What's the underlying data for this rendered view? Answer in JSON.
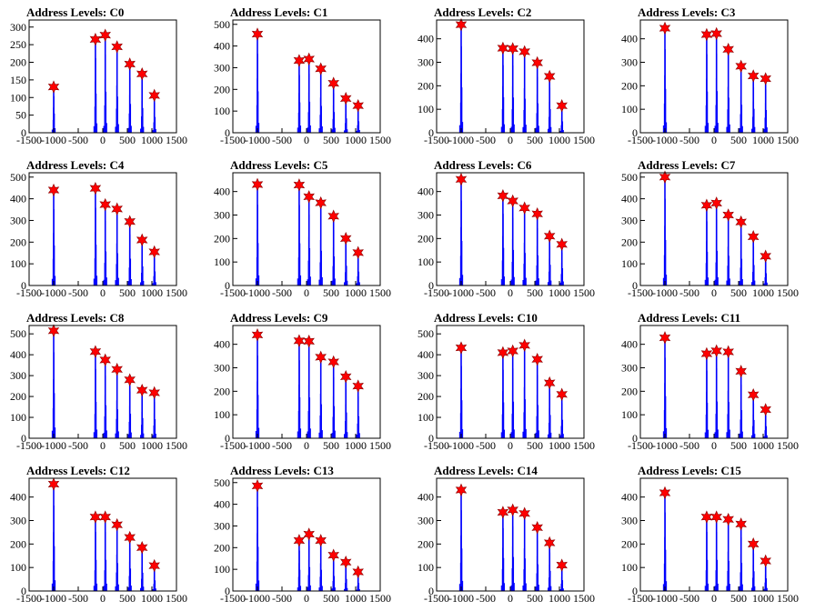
{
  "figure": {
    "background": "#ffffff",
    "bar_color": "#0000ff",
    "marker_color": "#ff0000"
  },
  "chart_data": [
    {
      "type": "bar",
      "title": "Address Levels: C0",
      "xlim": [
        -1500,
        1500
      ],
      "ylim": [
        0,
        320
      ],
      "xticks": [
        -1500,
        -1000,
        -500,
        0,
        500,
        1000,
        1500
      ],
      "xtick_labels": [
        "-1500",
        "-1000",
        "-500",
        "0",
        "500",
        "1000",
        "1500"
      ],
      "yticks": [
        0,
        50,
        100,
        150,
        200,
        250,
        300
      ],
      "peaks": [
        {
          "x": -1000,
          "y": 130
        },
        {
          "x": -150,
          "y": 265
        },
        {
          "x": 50,
          "y": 277
        },
        {
          "x": 290,
          "y": 244
        },
        {
          "x": 550,
          "y": 195
        },
        {
          "x": 800,
          "y": 167
        },
        {
          "x": 1050,
          "y": 106
        }
      ]
    },
    {
      "type": "bar",
      "title": "Address Levels: C1",
      "xlim": [
        -1500,
        1500
      ],
      "ylim": [
        0,
        520
      ],
      "xticks": [
        -1500,
        -1000,
        -500,
        0,
        500,
        1000,
        1500
      ],
      "xtick_labels": [
        "-1500",
        "-1000",
        "-500",
        "0",
        "500",
        "1000",
        "1500"
      ],
      "yticks": [
        0,
        100,
        200,
        300,
        400,
        500
      ],
      "peaks": [
        {
          "x": -1000,
          "y": 455
        },
        {
          "x": -150,
          "y": 333
        },
        {
          "x": 50,
          "y": 340
        },
        {
          "x": 290,
          "y": 295
        },
        {
          "x": 550,
          "y": 228
        },
        {
          "x": 800,
          "y": 158
        },
        {
          "x": 1050,
          "y": 125
        }
      ]
    },
    {
      "type": "bar",
      "title": "Address Levels: C2",
      "xlim": [
        -1500,
        1500
      ],
      "ylim": [
        0,
        480
      ],
      "xticks": [
        -1500,
        -1000,
        -500,
        0,
        500,
        1000,
        1500
      ],
      "xtick_labels": [
        "-1500",
        "-1000",
        "-500",
        "0",
        "500",
        "1000",
        "1500"
      ],
      "yticks": [
        0,
        100,
        200,
        300,
        400
      ],
      "peaks": [
        {
          "x": -1000,
          "y": 460
        },
        {
          "x": -150,
          "y": 360
        },
        {
          "x": 50,
          "y": 358
        },
        {
          "x": 290,
          "y": 345
        },
        {
          "x": 550,
          "y": 298
        },
        {
          "x": 800,
          "y": 240
        },
        {
          "x": 1050,
          "y": 115
        }
      ]
    },
    {
      "type": "bar",
      "title": "Address Levels: C3",
      "xlim": [
        -1500,
        1500
      ],
      "ylim": [
        0,
        480
      ],
      "xticks": [
        -1500,
        -1000,
        -500,
        0,
        500,
        1000,
        1500
      ],
      "xtick_labels": [
        "-1500",
        "-1000",
        "-500",
        "0",
        "500",
        "1000",
        "1500"
      ],
      "yticks": [
        0,
        100,
        200,
        300,
        400
      ],
      "peaks": [
        {
          "x": -1000,
          "y": 445
        },
        {
          "x": -150,
          "y": 418
        },
        {
          "x": 50,
          "y": 422
        },
        {
          "x": 290,
          "y": 355
        },
        {
          "x": 550,
          "y": 283
        },
        {
          "x": 800,
          "y": 242
        },
        {
          "x": 1050,
          "y": 230
        }
      ]
    },
    {
      "type": "bar",
      "title": "Address Levels: C4",
      "xlim": [
        -1500,
        1500
      ],
      "ylim": [
        0,
        520
      ],
      "xticks": [
        -1500,
        -1000,
        -500,
        0,
        500,
        1000,
        1500
      ],
      "xtick_labels": [
        "-1500",
        "-1000",
        "-500",
        "0",
        "500",
        "1000",
        "1500"
      ],
      "yticks": [
        0,
        100,
        200,
        300,
        400,
        500
      ],
      "peaks": [
        {
          "x": -1000,
          "y": 440
        },
        {
          "x": -150,
          "y": 448
        },
        {
          "x": 50,
          "y": 373
        },
        {
          "x": 290,
          "y": 353
        },
        {
          "x": 550,
          "y": 295
        },
        {
          "x": 800,
          "y": 210
        },
        {
          "x": 1050,
          "y": 155
        }
      ]
    },
    {
      "type": "bar",
      "title": "Address Levels: C5",
      "xlim": [
        -1500,
        1500
      ],
      "ylim": [
        0,
        480
      ],
      "xticks": [
        -1500,
        -1000,
        -500,
        0,
        500,
        1000,
        1500
      ],
      "xtick_labels": [
        "-1500",
        "-1000",
        "-500",
        "0",
        "500",
        "1000",
        "1500"
      ],
      "yticks": [
        0,
        100,
        200,
        300,
        400
      ],
      "peaks": [
        {
          "x": -1000,
          "y": 430
        },
        {
          "x": -150,
          "y": 428
        },
        {
          "x": 50,
          "y": 378
        },
        {
          "x": 290,
          "y": 352
        },
        {
          "x": 550,
          "y": 295
        },
        {
          "x": 800,
          "y": 200
        },
        {
          "x": 1050,
          "y": 140
        }
      ]
    },
    {
      "type": "bar",
      "title": "Address Levels: C6",
      "xlim": [
        -1500,
        1500
      ],
      "ylim": [
        0,
        480
      ],
      "xticks": [
        -1500,
        -1000,
        -500,
        0,
        500,
        1000,
        1500
      ],
      "xtick_labels": [
        "-1500",
        "-1000",
        "-500",
        "0",
        "500",
        "1000",
        "1500"
      ],
      "yticks": [
        0,
        100,
        200,
        300,
        400
      ],
      "peaks": [
        {
          "x": -1000,
          "y": 452
        },
        {
          "x": -150,
          "y": 382
        },
        {
          "x": 50,
          "y": 360
        },
        {
          "x": 290,
          "y": 330
        },
        {
          "x": 550,
          "y": 305
        },
        {
          "x": 800,
          "y": 210
        },
        {
          "x": 1050,
          "y": 175
        }
      ]
    },
    {
      "type": "bar",
      "title": "Address Levels: C7",
      "xlim": [
        -1500,
        1500
      ],
      "ylim": [
        0,
        520
      ],
      "xticks": [
        -1500,
        -1000,
        -500,
        0,
        500,
        1000,
        1500
      ],
      "xtick_labels": [
        "-1500",
        "-1000",
        "-500",
        "0",
        "500",
        "1000",
        "1500"
      ],
      "yticks": [
        0,
        100,
        200,
        300,
        400,
        500
      ],
      "peaks": [
        {
          "x": -1000,
          "y": 500
        },
        {
          "x": -150,
          "y": 370
        },
        {
          "x": 50,
          "y": 380
        },
        {
          "x": 290,
          "y": 325
        },
        {
          "x": 550,
          "y": 293
        },
        {
          "x": 800,
          "y": 225
        },
        {
          "x": 1050,
          "y": 135
        }
      ]
    },
    {
      "type": "bar",
      "title": "Address Levels: C8",
      "xlim": [
        -1500,
        1500
      ],
      "ylim": [
        0,
        540
      ],
      "xticks": [
        -1500,
        -1000,
        -500,
        0,
        500,
        1000,
        1500
      ],
      "xtick_labels": [
        "-1500",
        "-1000",
        "-500",
        "0",
        "500",
        "1000",
        "1500"
      ],
      "yticks": [
        0,
        100,
        200,
        300,
        400,
        500
      ],
      "peaks": [
        {
          "x": -1000,
          "y": 515
        },
        {
          "x": -150,
          "y": 415
        },
        {
          "x": 50,
          "y": 375
        },
        {
          "x": 290,
          "y": 330
        },
        {
          "x": 550,
          "y": 280
        },
        {
          "x": 800,
          "y": 230
        },
        {
          "x": 1050,
          "y": 218
        }
      ]
    },
    {
      "type": "bar",
      "title": "Address Levels: C9",
      "xlim": [
        -1500,
        1500
      ],
      "ylim": [
        0,
        480
      ],
      "xticks": [
        -1500,
        -1000,
        -500,
        0,
        500,
        1000,
        1500
      ],
      "xtick_labels": [
        "-1500",
        "-1000",
        "-500",
        "0",
        "500",
        "1000",
        "1500"
      ],
      "yticks": [
        0,
        100,
        200,
        300,
        400
      ],
      "peaks": [
        {
          "x": -1000,
          "y": 440
        },
        {
          "x": -150,
          "y": 415
        },
        {
          "x": 50,
          "y": 413
        },
        {
          "x": 290,
          "y": 345
        },
        {
          "x": 550,
          "y": 325
        },
        {
          "x": 800,
          "y": 262
        },
        {
          "x": 1050,
          "y": 222
        }
      ]
    },
    {
      "type": "bar",
      "title": "Address Levels: C10",
      "xlim": [
        -1500,
        1500
      ],
      "ylim": [
        0,
        540
      ],
      "xticks": [
        -1500,
        -1000,
        -500,
        0,
        500,
        1000,
        1500
      ],
      "xtick_labels": [
        "-1500",
        "-1000",
        "-500",
        "0",
        "500",
        "1000",
        "1500"
      ],
      "yticks": [
        0,
        100,
        200,
        300,
        400,
        500
      ],
      "peaks": [
        {
          "x": -1000,
          "y": 433
        },
        {
          "x": -150,
          "y": 410
        },
        {
          "x": 50,
          "y": 418
        },
        {
          "x": 290,
          "y": 445
        },
        {
          "x": 550,
          "y": 378
        },
        {
          "x": 800,
          "y": 265
        },
        {
          "x": 1050,
          "y": 210
        }
      ]
    },
    {
      "type": "bar",
      "title": "Address Levels: C11",
      "xlim": [
        -1500,
        1500
      ],
      "ylim": [
        0,
        480
      ],
      "xticks": [
        -1500,
        -1000,
        -500,
        0,
        500,
        1000,
        1500
      ],
      "xtick_labels": [
        "-1500",
        "-1000",
        "-500",
        "0",
        "500",
        "1000",
        "1500"
      ],
      "yticks": [
        0,
        100,
        200,
        300,
        400
      ],
      "peaks": [
        {
          "x": -1000,
          "y": 428
        },
        {
          "x": -150,
          "y": 360
        },
        {
          "x": 50,
          "y": 372
        },
        {
          "x": 290,
          "y": 368
        },
        {
          "x": 550,
          "y": 285
        },
        {
          "x": 800,
          "y": 185
        },
        {
          "x": 1050,
          "y": 122
        }
      ]
    },
    {
      "type": "bar",
      "title": "Address Levels: C12",
      "xlim": [
        -1500,
        1500
      ],
      "ylim": [
        0,
        480
      ],
      "xticks": [
        -1500,
        -1000,
        -500,
        0,
        500,
        1000,
        1500
      ],
      "xtick_labels": [
        "-1500",
        "-1000",
        "-500",
        "0",
        "500",
        "1000",
        "1500"
      ],
      "yticks": [
        0,
        100,
        200,
        300,
        400
      ],
      "peaks": [
        {
          "x": -1000,
          "y": 455
        },
        {
          "x": -150,
          "y": 315
        },
        {
          "x": 50,
          "y": 315
        },
        {
          "x": 290,
          "y": 282
        },
        {
          "x": 550,
          "y": 228
        },
        {
          "x": 800,
          "y": 185
        },
        {
          "x": 1050,
          "y": 108
        }
      ]
    },
    {
      "type": "bar",
      "title": "Address Levels: C13",
      "xlim": [
        -1500,
        1500
      ],
      "ylim": [
        0,
        520
      ],
      "xticks": [
        -1500,
        -1000,
        -500,
        0,
        500,
        1000,
        1500
      ],
      "xtick_labels": [
        "-1500",
        "-1000",
        "-500",
        "0",
        "500",
        "1000",
        "1500"
      ],
      "yticks": [
        0,
        100,
        200,
        300,
        400,
        500
      ],
      "peaks": [
        {
          "x": -1000,
          "y": 485
        },
        {
          "x": -150,
          "y": 233
        },
        {
          "x": 50,
          "y": 262
        },
        {
          "x": 290,
          "y": 233
        },
        {
          "x": 550,
          "y": 165
        },
        {
          "x": 800,
          "y": 133
        },
        {
          "x": 1050,
          "y": 88
        }
      ]
    },
    {
      "type": "bar",
      "title": "Address Levels: C14",
      "xlim": [
        -1500,
        1500
      ],
      "ylim": [
        0,
        480
      ],
      "xticks": [
        -1500,
        -1000,
        -500,
        0,
        500,
        1000,
        1500
      ],
      "xtick_labels": [
        "-1500",
        "-1000",
        "-500",
        "0",
        "500",
        "1000",
        "1500"
      ],
      "yticks": [
        0,
        100,
        200,
        300,
        400
      ],
      "peaks": [
        {
          "x": -1000,
          "y": 430
        },
        {
          "x": -150,
          "y": 335
        },
        {
          "x": 50,
          "y": 345
        },
        {
          "x": 290,
          "y": 330
        },
        {
          "x": 550,
          "y": 270
        },
        {
          "x": 800,
          "y": 205
        },
        {
          "x": 1050,
          "y": 110
        }
      ]
    },
    {
      "type": "bar",
      "title": "Address Levels: C15",
      "xlim": [
        -1500,
        1500
      ],
      "ylim": [
        0,
        480
      ],
      "xticks": [
        -1500,
        -1000,
        -500,
        0,
        500,
        1000,
        1500
      ],
      "xtick_labels": [
        "-1500",
        "-1000",
        "-500",
        "0",
        "500",
        "1000",
        "1500"
      ],
      "yticks": [
        0,
        100,
        200,
        300,
        400
      ],
      "peaks": [
        {
          "x": -1000,
          "y": 418
        },
        {
          "x": -150,
          "y": 315
        },
        {
          "x": 50,
          "y": 315
        },
        {
          "x": 290,
          "y": 305
        },
        {
          "x": 550,
          "y": 285
        },
        {
          "x": 800,
          "y": 200
        },
        {
          "x": 1050,
          "y": 128
        }
      ]
    }
  ]
}
